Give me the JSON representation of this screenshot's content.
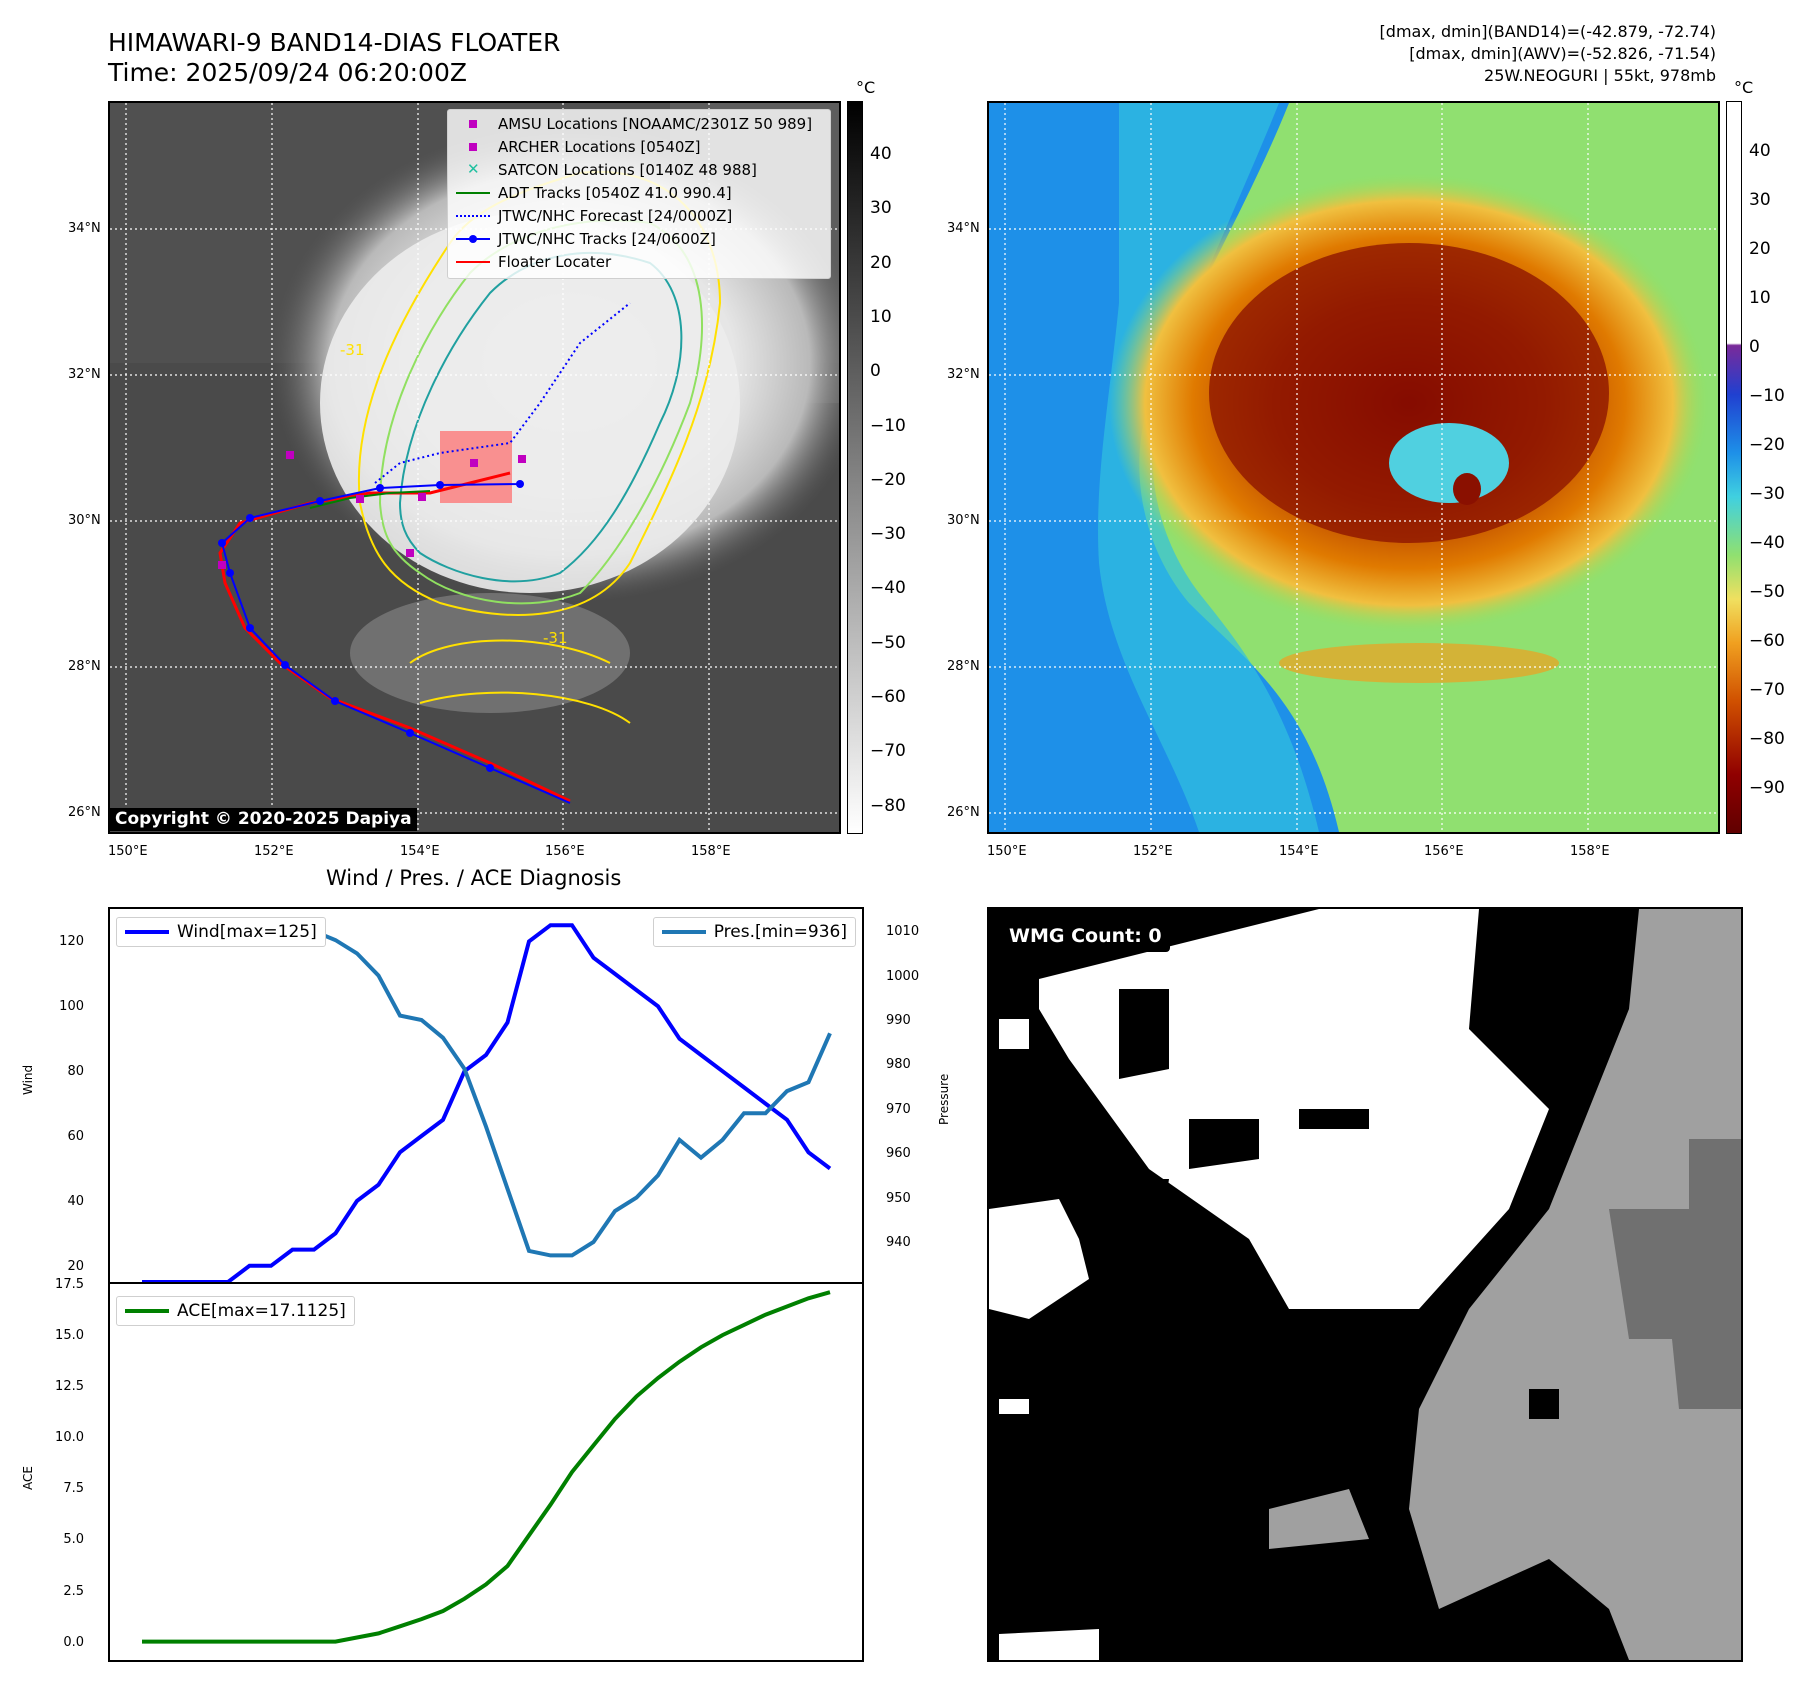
{
  "header": {
    "title": "HIMAWARI-9 BAND14-DIAS FLOATER",
    "time": "Time: 2025/09/24 06:20:00Z",
    "dmax_band14": "[dmax, dmin](BAND14)=(-42.879, -72.74)",
    "dmax_awv": "[dmax, dmin](AWV)=(-52.826, -71.54)",
    "storm": "25W.NEOGURI | 55kt, 978mb"
  },
  "maps": {
    "lat_ticks": [
      "34°N",
      "32°N",
      "30°N",
      "28°N",
      "26°N"
    ],
    "lon_ticks": [
      "150°E",
      "152°E",
      "154°E",
      "156°E",
      "158°E"
    ],
    "copyright": "Copyright © 2020-2025 Dapiya",
    "legend": [
      {
        "label": "AMSU Locations [NOAAMC/2301Z 50 989]",
        "icon": "square-marker",
        "color": "#c000c0"
      },
      {
        "label": "ARCHER Locations [0540Z]",
        "icon": "square-marker",
        "color": "#c000c0"
      },
      {
        "label": "SATCON Locations [0140Z 48 988]",
        "icon": "x-marker",
        "color": "#20c0a0"
      },
      {
        "label": "ADT Tracks [0540Z 41.0 990.4]",
        "icon": "solid-line",
        "color": "#008000"
      },
      {
        "label": "JTWC/NHC Forecast [24/0000Z]",
        "icon": "dotted-line",
        "color": "#0000ff"
      },
      {
        "label": "JTWC/NHC Tracks [24/0600Z]",
        "icon": "line-dot",
        "color": "#0000ff"
      },
      {
        "label": "Floater Locater",
        "icon": "solid-line",
        "color": "#ff0000"
      }
    ],
    "contour_label_a": "-31",
    "contour_label_b": "-31",
    "cbar_left": {
      "unit": "°C",
      "ticks": [
        "40",
        "30",
        "20",
        "10",
        "0",
        "−10",
        "−20",
        "−30",
        "−40",
        "−50",
        "−60",
        "−70",
        "−80"
      ]
    },
    "cbar_right": {
      "unit": "°C",
      "ticks": [
        "40",
        "30",
        "20",
        "10",
        "0",
        "−10",
        "−20",
        "−30",
        "−40",
        "−50",
        "−60",
        "−70",
        "−80",
        "−90"
      ]
    }
  },
  "diagnosis": {
    "title": "Wind / Pres. / ACE Diagnosis",
    "wind_label": "Wind",
    "pressure_label": "Pressure",
    "ace_label": "ACE",
    "wind_legend": "Wind[max=125]",
    "pres_legend": "Pres.[min=936]",
    "ace_legend": "ACE[max=17.1125]",
    "wind_color": "#0000ff",
    "pres_color": "#1f77b4",
    "ace_color": "#008000",
    "wmg": "WMG Count: 0"
  },
  "chart_data": [
    {
      "type": "line",
      "title": "Wind / Pres. / ACE Diagnosis",
      "ylabel": "Wind",
      "ylim": [
        15,
        130
      ],
      "y_ticks": [
        20,
        40,
        60,
        80,
        100,
        120
      ],
      "series": [
        {
          "name": "Wind[max=125]",
          "axis": "left",
          "values": [
            15,
            15,
            15,
            15,
            15,
            20,
            20,
            25,
            25,
            30,
            40,
            45,
            55,
            60,
            65,
            80,
            85,
            95,
            120,
            125,
            125,
            115,
            110,
            105,
            100,
            90,
            85,
            80,
            75,
            70,
            65,
            55,
            50
          ]
        },
        {
          "name": "Pres.[min=936]",
          "axis": "right",
          "values": [
            1010,
            1010,
            1012,
            1012,
            1012,
            1010,
            1010,
            1010,
            1010,
            1008,
            1005,
            1000,
            991,
            990,
            986,
            979,
            966,
            952,
            938,
            937,
            937,
            940,
            947,
            950,
            955,
            963,
            959,
            963,
            969,
            969,
            974,
            976,
            987
          ]
        }
      ],
      "y2label": "Pressure",
      "y2lim": [
        931,
        1015
      ],
      "y2_ticks": [
        940,
        950,
        960,
        970,
        980,
        990,
        1000,
        1010
      ]
    },
    {
      "type": "line",
      "ylabel": "ACE",
      "ylim": [
        -0.9,
        17.5
      ],
      "y_ticks": [
        0.0,
        2.5,
        5.0,
        7.5,
        10.0,
        12.5,
        15.0,
        17.5
      ],
      "series": [
        {
          "name": "ACE[max=17.1125]",
          "values": [
            0,
            0,
            0,
            0,
            0,
            0,
            0,
            0,
            0,
            0,
            0.2,
            0.4,
            0.75,
            1.1,
            1.5,
            2.1,
            2.8,
            3.7,
            5.2,
            6.7,
            8.3,
            9.6,
            10.9,
            12.0,
            12.9,
            13.7,
            14.4,
            15.0,
            15.5,
            16.0,
            16.4,
            16.8,
            17.1
          ]
        }
      ]
    }
  ]
}
